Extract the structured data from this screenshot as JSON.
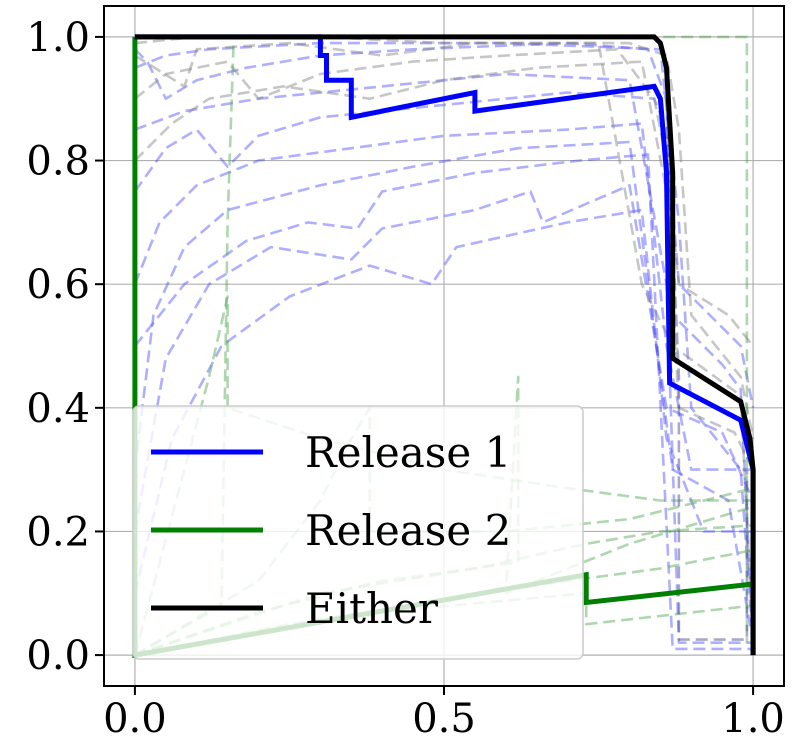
{
  "chart_data": {
    "type": "line",
    "title": "",
    "xlabel": "",
    "ylabel": "",
    "xlim": [
      -0.05,
      1.05
    ],
    "ylim": [
      -0.05,
      1.05
    ],
    "x_ticks": [
      0.0,
      0.5,
      1.0
    ],
    "x_tick_labels": [
      "0.0",
      "0.5",
      "1.0"
    ],
    "y_ticks": [
      0.0,
      0.2,
      0.4,
      0.6,
      0.8,
      1.0
    ],
    "y_tick_labels": [
      "0.0",
      "0.2",
      "0.4",
      "0.6",
      "0.8",
      "1.0"
    ],
    "grid": true,
    "legend_position": "lower-left",
    "series": [
      {
        "name": "Release 1",
        "color": "#0000ff",
        "style": "solid",
        "points": [
          [
            0.0,
            1.0
          ],
          [
            0.3,
            1.0
          ],
          [
            0.3,
            0.97
          ],
          [
            0.31,
            0.97
          ],
          [
            0.31,
            0.93
          ],
          [
            0.35,
            0.93
          ],
          [
            0.35,
            0.87
          ],
          [
            0.55,
            0.91
          ],
          [
            0.55,
            0.88
          ],
          [
            0.84,
            0.92
          ],
          [
            0.85,
            0.9
          ],
          [
            0.86,
            0.78
          ],
          [
            0.865,
            0.44
          ],
          [
            0.98,
            0.38
          ],
          [
            1.0,
            0.3
          ],
          [
            1.0,
            0.0
          ]
        ]
      },
      {
        "name": "Release 2",
        "color": "#007f00",
        "style": "solid",
        "points": [
          [
            0.0,
            1.0
          ],
          [
            0.0,
            0.0
          ],
          [
            0.73,
            0.13
          ],
          [
            0.73,
            0.085
          ],
          [
            1.0,
            0.115
          ]
        ]
      },
      {
        "name": "Either",
        "color": "#000000",
        "style": "solid",
        "points": [
          [
            0.0,
            1.0
          ],
          [
            0.84,
            1.0
          ],
          [
            0.85,
            0.99
          ],
          [
            0.86,
            0.95
          ],
          [
            0.87,
            0.78
          ],
          [
            0.87,
            0.48
          ],
          [
            0.98,
            0.41
          ],
          [
            0.995,
            0.35
          ],
          [
            1.0,
            0.3
          ],
          [
            1.0,
            0.0
          ]
        ]
      }
    ],
    "background_curves": [
      {
        "color": "#4d4dff",
        "points": [
          [
            0.0,
            0.95
          ],
          [
            0.05,
            0.97
          ],
          [
            0.12,
            0.98
          ],
          [
            0.3,
            0.99
          ],
          [
            0.6,
            0.99
          ],
          [
            0.85,
            0.98
          ],
          [
            0.88,
            0.7
          ],
          [
            0.9,
            0.4
          ],
          [
            0.98,
            0.3
          ],
          [
            1.0,
            0.02
          ]
        ]
      },
      {
        "color": "#4d4dff",
        "points": [
          [
            0.0,
            0.85
          ],
          [
            0.08,
            0.88
          ],
          [
            0.2,
            0.9
          ],
          [
            0.4,
            0.92
          ],
          [
            0.6,
            0.94
          ],
          [
            0.8,
            0.93
          ],
          [
            0.86,
            0.6
          ],
          [
            0.88,
            0.02
          ],
          [
            1.0,
            0.02
          ]
        ]
      },
      {
        "color": "#4d4dff",
        "points": [
          [
            0.0,
            0.6
          ],
          [
            0.04,
            0.7
          ],
          [
            0.1,
            0.76
          ],
          [
            0.2,
            0.8
          ],
          [
            0.35,
            0.82
          ],
          [
            0.5,
            0.84
          ],
          [
            0.7,
            0.85
          ],
          [
            0.82,
            0.86
          ],
          [
            0.86,
            0.5
          ],
          [
            0.9,
            0.3
          ],
          [
            1.0,
            0.3
          ]
        ]
      },
      {
        "color": "#4d4dff",
        "points": [
          [
            0.0,
            0.3
          ],
          [
            0.03,
            0.55
          ],
          [
            0.08,
            0.66
          ],
          [
            0.15,
            0.72
          ],
          [
            0.3,
            0.76
          ],
          [
            0.45,
            0.79
          ],
          [
            0.62,
            0.82
          ],
          [
            0.8,
            0.83
          ],
          [
            0.85,
            0.45
          ],
          [
            0.87,
            0.3
          ],
          [
            0.96,
            0.25
          ],
          [
            1.0,
            0.02
          ]
        ]
      },
      {
        "color": "#4d4dff",
        "points": [
          [
            0.0,
            0.2
          ],
          [
            0.05,
            0.48
          ],
          [
            0.12,
            0.6
          ],
          [
            0.22,
            0.66
          ],
          [
            0.35,
            0.64
          ],
          [
            0.4,
            0.69
          ],
          [
            0.55,
            0.72
          ],
          [
            0.64,
            0.75
          ],
          [
            0.66,
            0.7
          ],
          [
            0.8,
            0.76
          ],
          [
            0.86,
            0.4
          ],
          [
            0.95,
            0.36
          ],
          [
            1.0,
            0.25
          ]
        ]
      },
      {
        "color": "#4d4dff",
        "points": [
          [
            0.0,
            0.98
          ],
          [
            0.02,
            0.96
          ],
          [
            0.05,
            0.9
          ],
          [
            0.1,
            0.93
          ],
          [
            0.18,
            0.95
          ],
          [
            0.3,
            0.97
          ],
          [
            0.45,
            0.98
          ],
          [
            0.7,
            0.99
          ],
          [
            0.83,
            0.98
          ],
          [
            0.86,
            0.9
          ],
          [
            0.87,
            0.55
          ],
          [
            0.95,
            0.47
          ],
          [
            0.98,
            0.43
          ],
          [
            1.0,
            0.02
          ]
        ]
      },
      {
        "color": "#4d4dff",
        "points": [
          [
            0.0,
            0.1
          ],
          [
            0.06,
            0.35
          ],
          [
            0.14,
            0.5
          ],
          [
            0.25,
            0.58
          ],
          [
            0.38,
            0.63
          ],
          [
            0.48,
            0.6
          ],
          [
            0.52,
            0.66
          ],
          [
            0.7,
            0.7
          ],
          [
            0.82,
            0.72
          ],
          [
            0.86,
            0.35
          ],
          [
            0.92,
            0.2
          ],
          [
            1.0,
            0.2
          ]
        ]
      },
      {
        "color": "#4d4dff",
        "points": [
          [
            0.0,
            0.75
          ],
          [
            0.05,
            0.82
          ],
          [
            0.1,
            0.85
          ],
          [
            0.15,
            0.79
          ],
          [
            0.2,
            0.84
          ],
          [
            0.3,
            0.87
          ],
          [
            0.5,
            0.89
          ],
          [
            0.7,
            0.91
          ],
          [
            0.84,
            0.9
          ],
          [
            0.86,
            0.85
          ],
          [
            0.88,
            0.6
          ],
          [
            0.98,
            0.5
          ],
          [
            1.0,
            0.4
          ]
        ]
      },
      {
        "color": "#4d4dff",
        "points": [
          [
            0.0,
            0.5
          ],
          [
            0.08,
            0.6
          ],
          [
            0.18,
            0.67
          ],
          [
            0.28,
            0.7
          ],
          [
            0.36,
            0.69
          ],
          [
            0.4,
            0.75
          ],
          [
            0.55,
            0.78
          ],
          [
            0.72,
            0.8
          ],
          [
            0.83,
            0.81
          ],
          [
            0.87,
            0.01
          ],
          [
            1.0,
            0.01
          ]
        ]
      },
      {
        "color": "#808080",
        "points": [
          [
            0.0,
            0.99
          ],
          [
            0.1,
            1.0
          ],
          [
            0.3,
            1.0
          ],
          [
            0.5,
            0.99
          ],
          [
            0.8,
            0.99
          ],
          [
            0.86,
            0.97
          ],
          [
            0.88,
            0.85
          ],
          [
            0.9,
            0.55
          ],
          [
            0.98,
            0.45
          ],
          [
            1.0,
            0.35
          ]
        ]
      },
      {
        "color": "#808080",
        "points": [
          [
            0.0,
            0.9
          ],
          [
            0.05,
            0.94
          ],
          [
            0.15,
            0.96
          ],
          [
            0.2,
            0.9
          ],
          [
            0.3,
            0.94
          ],
          [
            0.45,
            0.96
          ],
          [
            0.6,
            0.97
          ],
          [
            0.78,
            0.98
          ],
          [
            0.84,
            0.9
          ],
          [
            0.86,
            0.8
          ],
          [
            0.88,
            0.6
          ],
          [
            0.96,
            0.55
          ],
          [
            1.0,
            0.5
          ]
        ]
      },
      {
        "color": "#808080",
        "points": [
          [
            0.0,
            0.97
          ],
          [
            0.08,
            0.92
          ],
          [
            0.1,
            0.98
          ],
          [
            0.25,
            0.99
          ],
          [
            0.4,
            0.97
          ],
          [
            0.55,
            0.99
          ],
          [
            0.75,
            0.99
          ],
          [
            0.82,
            0.6
          ],
          [
            0.87,
            0.5
          ],
          [
            0.98,
            0.42
          ],
          [
            1.0,
            0.02
          ]
        ]
      },
      {
        "color": "#808080",
        "points": [
          [
            0.0,
            0.8
          ],
          [
            0.06,
            0.86
          ],
          [
            0.12,
            0.9
          ],
          [
            0.24,
            0.92
          ],
          [
            0.38,
            0.9
          ],
          [
            0.5,
            0.93
          ],
          [
            0.65,
            0.95
          ],
          [
            0.82,
            0.96
          ],
          [
            0.86,
            0.75
          ],
          [
            0.88,
            0.4
          ],
          [
            0.97,
            0.36
          ],
          [
            1.0,
            0.3
          ]
        ]
      },
      {
        "color": "#4da64d",
        "points": [
          [
            0.0,
            0.0
          ],
          [
            0.14,
            0.08
          ],
          [
            0.15,
            0.7
          ],
          [
            0.16,
            1.0
          ],
          [
            0.99,
            1.0
          ],
          [
            0.99,
            0.02
          ]
        ]
      },
      {
        "color": "#4da64d",
        "points": [
          [
            0.0,
            0.0
          ],
          [
            0.2,
            0.07
          ],
          [
            0.4,
            0.12
          ],
          [
            0.62,
            0.15
          ],
          [
            0.62,
            0.45
          ],
          [
            0.6,
            0.1
          ],
          [
            0.8,
            0.18
          ],
          [
            1.0,
            0.24
          ]
        ]
      },
      {
        "color": "#4da64d",
        "points": [
          [
            0.0,
            0.0
          ],
          [
            0.12,
            0.45
          ],
          [
            0.15,
            0.58
          ],
          [
            0.15,
            0.4
          ],
          [
            0.3,
            0.35
          ],
          [
            0.5,
            0.3
          ],
          [
            0.7,
            0.27
          ],
          [
            0.85,
            0.25
          ],
          [
            1.0,
            0.25
          ]
        ]
      },
      {
        "color": "#4da64d",
        "points": [
          [
            0.0,
            0.0
          ],
          [
            0.3,
            0.1
          ],
          [
            0.55,
            0.14
          ],
          [
            0.73,
            0.18
          ],
          [
            0.85,
            0.2
          ],
          [
            1.0,
            0.21
          ]
        ]
      },
      {
        "color": "#4da64d",
        "points": [
          [
            0.0,
            0.0
          ],
          [
            0.25,
            0.05
          ],
          [
            0.5,
            0.09
          ],
          [
            0.7,
            0.12
          ],
          [
            0.85,
            0.14
          ],
          [
            1.0,
            0.17
          ]
        ]
      },
      {
        "color": "#4da64d",
        "points": [
          [
            0.0,
            0.0
          ],
          [
            0.2,
            0.12
          ],
          [
            0.3,
            0.25
          ],
          [
            0.35,
            0.35
          ],
          [
            0.38,
            0.4
          ],
          [
            0.38,
            0.2
          ],
          [
            0.6,
            0.2
          ],
          [
            0.8,
            0.22
          ],
          [
            1.0,
            0.27
          ]
        ]
      },
      {
        "color": "#4da64d",
        "points": [
          [
            0.0,
            0.0
          ],
          [
            0.4,
            0.07
          ],
          [
            0.73,
            0.1
          ],
          [
            0.73,
            0.05
          ],
          [
            1.0,
            0.08
          ]
        ]
      },
      {
        "color": "#3d3d8f",
        "points": [
          [
            0.86,
            0.9
          ],
          [
            0.88,
            0.45
          ],
          [
            0.88,
            0.025
          ],
          [
            0.99,
            0.025
          ],
          [
            0.99,
            0.3
          ]
        ]
      }
    ]
  }
}
